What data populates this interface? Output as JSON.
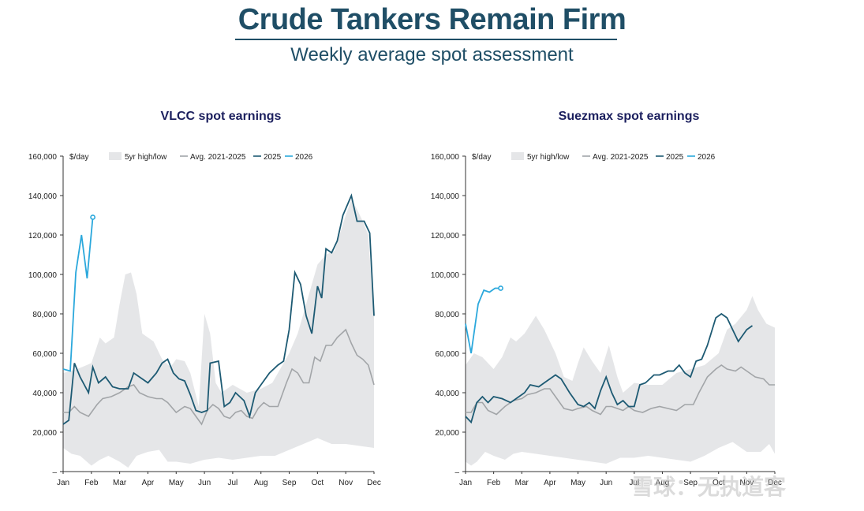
{
  "header": {
    "title": "Crude Tankers Remain Firm",
    "subtitle": "Weekly average spot assessment"
  },
  "watermark": "雪球：无执道客",
  "colors": {
    "band": "#e5e6e8",
    "avg": "#a2a5a8",
    "y2025": "#1d5a73",
    "y2026": "#2ba8dc"
  },
  "chart_data": [
    {
      "type": "line",
      "title": "VLCC spot earnings",
      "unit_label": "$/day",
      "ylim": [
        0,
        160000
      ],
      "yticks": [
        0,
        20000,
        40000,
        60000,
        80000,
        100000,
        120000,
        140000,
        160000
      ],
      "ytick_labels": [
        "–",
        "20,000",
        "40,000",
        "60,000",
        "80,000",
        "100,000",
        "120,000",
        "140,000",
        "160,000"
      ],
      "xlim": [
        0,
        11
      ],
      "month_labels": [
        "Jan",
        "Feb",
        "Mar",
        "Apr",
        "May",
        "Jun",
        "Jul",
        "Aug",
        "Sep",
        "Oct",
        "Nov",
        "Dec"
      ],
      "legend": {
        "band": "5yr high/low",
        "avg": "Avg. 2021-2025",
        "y2025": "2025",
        "y2026": "2026"
      },
      "band_high": [
        [
          0,
          50000
        ],
        [
          0.5,
          52000
        ],
        [
          1,
          55000
        ],
        [
          1.3,
          68000
        ],
        [
          1.5,
          65000
        ],
        [
          1.8,
          68000
        ],
        [
          2,
          85000
        ],
        [
          2.2,
          100000
        ],
        [
          2.4,
          101000
        ],
        [
          2.6,
          90000
        ],
        [
          2.8,
          70000
        ],
        [
          3,
          68000
        ],
        [
          3.2,
          66000
        ],
        [
          3.5,
          57000
        ],
        [
          3.8,
          53000
        ],
        [
          4,
          57000
        ],
        [
          4.3,
          56000
        ],
        [
          4.5,
          50000
        ],
        [
          4.8,
          33000
        ],
        [
          5,
          80000
        ],
        [
          5.2,
          70000
        ],
        [
          5.4,
          45000
        ],
        [
          5.6,
          40000
        ],
        [
          6,
          44000
        ],
        [
          6.5,
          40000
        ],
        [
          7,
          42000
        ],
        [
          7.4,
          45000
        ],
        [
          7.8,
          55000
        ],
        [
          8,
          60000
        ],
        [
          8.3,
          70000
        ],
        [
          8.5,
          80000
        ],
        [
          8.8,
          95000
        ],
        [
          9,
          105000
        ],
        [
          9.3,
          110000
        ],
        [
          9.6,
          112000
        ],
        [
          10,
          130000
        ],
        [
          10.2,
          138000
        ],
        [
          10.4,
          133000
        ],
        [
          10.6,
          127000
        ],
        [
          10.8,
          120000
        ],
        [
          11,
          78000
        ]
      ],
      "band_low": [
        [
          0,
          12000
        ],
        [
          0.3,
          9000
        ],
        [
          0.6,
          8000
        ],
        [
          1,
          3000
        ],
        [
          1.3,
          6000
        ],
        [
          1.6,
          8000
        ],
        [
          2,
          5000
        ],
        [
          2.3,
          2000
        ],
        [
          2.6,
          8000
        ],
        [
          3,
          10000
        ],
        [
          3.4,
          11000
        ],
        [
          3.7,
          5000
        ],
        [
          4,
          5000
        ],
        [
          4.5,
          4000
        ],
        [
          5,
          6000
        ],
        [
          5.5,
          7000
        ],
        [
          6,
          6000
        ],
        [
          6.5,
          7000
        ],
        [
          7,
          8000
        ],
        [
          7.5,
          8000
        ],
        [
          8,
          11000
        ],
        [
          8.5,
          14000
        ],
        [
          9,
          17000
        ],
        [
          9.5,
          14000
        ],
        [
          10,
          14000
        ],
        [
          10.5,
          13000
        ],
        [
          11,
          12000
        ]
      ],
      "avg": [
        [
          0,
          30000
        ],
        [
          0.2,
          30000
        ],
        [
          0.4,
          33000
        ],
        [
          0.6,
          30000
        ],
        [
          0.9,
          28000
        ],
        [
          1.2,
          34000
        ],
        [
          1.4,
          37000
        ],
        [
          1.7,
          38000
        ],
        [
          2,
          40000
        ],
        [
          2.3,
          43000
        ],
        [
          2.5,
          44000
        ],
        [
          2.7,
          40000
        ],
        [
          3,
          38000
        ],
        [
          3.3,
          37000
        ],
        [
          3.5,
          37000
        ],
        [
          3.7,
          35000
        ],
        [
          4,
          30000
        ],
        [
          4.3,
          33000
        ],
        [
          4.5,
          32000
        ],
        [
          4.7,
          28000
        ],
        [
          4.9,
          24000
        ],
        [
          5.1,
          31000
        ],
        [
          5.3,
          34000
        ],
        [
          5.5,
          32000
        ],
        [
          5.7,
          28000
        ],
        [
          5.9,
          27000
        ],
        [
          6.1,
          30000
        ],
        [
          6.3,
          31000
        ],
        [
          6.5,
          28000
        ],
        [
          6.7,
          27000
        ],
        [
          6.9,
          32000
        ],
        [
          7.1,
          35000
        ],
        [
          7.3,
          33000
        ],
        [
          7.6,
          33000
        ],
        [
          7.9,
          45000
        ],
        [
          8.1,
          52000
        ],
        [
          8.3,
          50000
        ],
        [
          8.5,
          45000
        ],
        [
          8.7,
          45000
        ],
        [
          8.9,
          58000
        ],
        [
          9.1,
          56000
        ],
        [
          9.3,
          64000
        ],
        [
          9.5,
          64000
        ],
        [
          9.7,
          68000
        ],
        [
          10,
          72000
        ],
        [
          10.2,
          65000
        ],
        [
          10.4,
          59000
        ],
        [
          10.6,
          57000
        ],
        [
          10.8,
          54000
        ],
        [
          11,
          44000
        ]
      ],
      "y2025": [
        [
          0,
          24000
        ],
        [
          0.2,
          26000
        ],
        [
          0.4,
          55000
        ],
        [
          0.6,
          48000
        ],
        [
          0.9,
          40000
        ],
        [
          1.05,
          53000
        ],
        [
          1.25,
          45000
        ],
        [
          1.5,
          48000
        ],
        [
          1.75,
          43000
        ],
        [
          2,
          42000
        ],
        [
          2.3,
          42000
        ],
        [
          2.5,
          50000
        ],
        [
          2.8,
          47000
        ],
        [
          3,
          45000
        ],
        [
          3.3,
          50000
        ],
        [
          3.5,
          55000
        ],
        [
          3.7,
          57000
        ],
        [
          3.9,
          50000
        ],
        [
          4.1,
          47000
        ],
        [
          4.3,
          46000
        ],
        [
          4.5,
          39000
        ],
        [
          4.7,
          31000
        ],
        [
          4.9,
          30000
        ],
        [
          5.1,
          31000
        ],
        [
          5.2,
          55000
        ],
        [
          5.5,
          56000
        ],
        [
          5.7,
          33000
        ],
        [
          5.9,
          35000
        ],
        [
          6.1,
          40000
        ],
        [
          6.4,
          36000
        ],
        [
          6.6,
          28000
        ],
        [
          6.8,
          40000
        ],
        [
          7,
          44000
        ],
        [
          7.3,
          50000
        ],
        [
          7.6,
          54000
        ],
        [
          7.8,
          56000
        ],
        [
          8,
          72000
        ],
        [
          8.2,
          101000
        ],
        [
          8.4,
          95000
        ],
        [
          8.6,
          79000
        ],
        [
          8.8,
          70000
        ],
        [
          9,
          94000
        ],
        [
          9.15,
          88000
        ],
        [
          9.3,
          113000
        ],
        [
          9.5,
          111000
        ],
        [
          9.7,
          117000
        ],
        [
          9.9,
          130000
        ],
        [
          10.2,
          140000
        ],
        [
          10.4,
          127000
        ],
        [
          10.65,
          127000
        ],
        [
          10.85,
          121000
        ],
        [
          11,
          79000
        ]
      ],
      "y2026": [
        [
          0,
          52000
        ],
        [
          0.25,
          51000
        ],
        [
          0.45,
          101000
        ],
        [
          0.65,
          120000
        ],
        [
          0.85,
          98000
        ],
        [
          1.05,
          129000
        ]
      ]
    },
    {
      "type": "line",
      "title": "Suezmax spot earnings",
      "unit_label": "$/day",
      "ylim": [
        0,
        160000
      ],
      "yticks": [
        0,
        20000,
        40000,
        60000,
        80000,
        100000,
        120000,
        140000,
        160000
      ],
      "ytick_labels": [
        "–",
        "20,000",
        "40,000",
        "60,000",
        "80,000",
        "100,000",
        "120,000",
        "140,000",
        "160,000"
      ],
      "xlim": [
        0,
        11
      ],
      "month_labels": [
        "Jan",
        "Feb",
        "Mar",
        "Apr",
        "May",
        "Jun",
        "Jul",
        "Aug",
        "Sep",
        "Oct",
        "Nov",
        "Dec"
      ],
      "legend": {
        "band": "5yr high/low",
        "avg": "Avg. 2021-2025",
        "y2025": "2025",
        "y2026": "2026"
      },
      "band_high": [
        [
          0,
          54000
        ],
        [
          0.3,
          60000
        ],
        [
          0.6,
          58000
        ],
        [
          1,
          52000
        ],
        [
          1.3,
          58000
        ],
        [
          1.6,
          68000
        ],
        [
          1.8,
          66000
        ],
        [
          2.1,
          70000
        ],
        [
          2.5,
          79000
        ],
        [
          2.8,
          72000
        ],
        [
          3.2,
          60000
        ],
        [
          3.5,
          48000
        ],
        [
          3.8,
          46000
        ],
        [
          4,
          55000
        ],
        [
          4.2,
          63000
        ],
        [
          4.5,
          56000
        ],
        [
          4.8,
          50000
        ],
        [
          5.1,
          64000
        ],
        [
          5.4,
          48000
        ],
        [
          5.6,
          40000
        ],
        [
          6,
          45000
        ],
        [
          6.5,
          44000
        ],
        [
          7,
          44000
        ],
        [
          7.5,
          50000
        ],
        [
          8,
          52000
        ],
        [
          8.5,
          54000
        ],
        [
          9,
          60000
        ],
        [
          9.3,
          72000
        ],
        [
          9.6,
          75000
        ],
        [
          10,
          82000
        ],
        [
          10.2,
          89000
        ],
        [
          10.4,
          82000
        ],
        [
          10.7,
          75000
        ],
        [
          11,
          73000
        ]
      ],
      "band_low": [
        [
          0,
          5000
        ],
        [
          0.2,
          3000
        ],
        [
          0.4,
          5000
        ],
        [
          0.7,
          10000
        ],
        [
          1,
          8000
        ],
        [
          1.4,
          6000
        ],
        [
          1.7,
          9000
        ],
        [
          2,
          10000
        ],
        [
          2.5,
          9000
        ],
        [
          3,
          8000
        ],
        [
          3.5,
          7000
        ],
        [
          4,
          6000
        ],
        [
          4.5,
          5000
        ],
        [
          5,
          4000
        ],
        [
          5.5,
          7000
        ],
        [
          6,
          7000
        ],
        [
          6.5,
          8000
        ],
        [
          7,
          7000
        ],
        [
          7.5,
          6000
        ],
        [
          8,
          5000
        ],
        [
          8.5,
          8000
        ],
        [
          9,
          12000
        ],
        [
          9.5,
          15000
        ],
        [
          10,
          10000
        ],
        [
          10.5,
          10000
        ],
        [
          10.8,
          14000
        ],
        [
          11,
          9000
        ]
      ],
      "avg": [
        [
          0,
          30000
        ],
        [
          0.2,
          30000
        ],
        [
          0.4,
          35000
        ],
        [
          0.6,
          35000
        ],
        [
          0.8,
          31000
        ],
        [
          1.1,
          29000
        ],
        [
          1.4,
          33000
        ],
        [
          1.7,
          36000
        ],
        [
          2,
          37000
        ],
        [
          2.2,
          39000
        ],
        [
          2.5,
          40000
        ],
        [
          2.8,
          42000
        ],
        [
          3,
          42000
        ],
        [
          3.3,
          36000
        ],
        [
          3.5,
          32000
        ],
        [
          3.8,
          31000
        ],
        [
          4,
          32000
        ],
        [
          4.3,
          33000
        ],
        [
          4.5,
          31000
        ],
        [
          4.8,
          29000
        ],
        [
          5,
          33000
        ],
        [
          5.2,
          33000
        ],
        [
          5.4,
          32000
        ],
        [
          5.6,
          31000
        ],
        [
          5.8,
          33000
        ],
        [
          6,
          31000
        ],
        [
          6.3,
          30000
        ],
        [
          6.6,
          32000
        ],
        [
          6.9,
          33000
        ],
        [
          7.2,
          32000
        ],
        [
          7.5,
          31000
        ],
        [
          7.8,
          34000
        ],
        [
          8.1,
          34000
        ],
        [
          8.3,
          40000
        ],
        [
          8.6,
          48000
        ],
        [
          8.9,
          52000
        ],
        [
          9.1,
          54000
        ],
        [
          9.3,
          52000
        ],
        [
          9.6,
          51000
        ],
        [
          9.8,
          53000
        ],
        [
          10,
          51000
        ],
        [
          10.3,
          48000
        ],
        [
          10.6,
          47000
        ],
        [
          10.8,
          44000
        ],
        [
          11,
          44000
        ]
      ],
      "y2025": [
        [
          0,
          28000
        ],
        [
          0.2,
          25000
        ],
        [
          0.4,
          35000
        ],
        [
          0.6,
          38000
        ],
        [
          0.8,
          35000
        ],
        [
          1,
          38000
        ],
        [
          1.3,
          37000
        ],
        [
          1.6,
          35000
        ],
        [
          1.9,
          38000
        ],
        [
          2.1,
          40000
        ],
        [
          2.3,
          44000
        ],
        [
          2.6,
          43000
        ],
        [
          2.9,
          46000
        ],
        [
          3.2,
          49000
        ],
        [
          3.4,
          47000
        ],
        [
          3.7,
          40000
        ],
        [
          4,
          34000
        ],
        [
          4.2,
          33000
        ],
        [
          4.4,
          35000
        ],
        [
          4.6,
          32000
        ],
        [
          4.8,
          41000
        ],
        [
          5,
          48000
        ],
        [
          5.2,
          40000
        ],
        [
          5.4,
          34000
        ],
        [
          5.6,
          36000
        ],
        [
          5.8,
          33000
        ],
        [
          6,
          33000
        ],
        [
          6.2,
          44000
        ],
        [
          6.4,
          45000
        ],
        [
          6.7,
          49000
        ],
        [
          6.9,
          49000
        ],
        [
          7.2,
          51000
        ],
        [
          7.4,
          51000
        ],
        [
          7.6,
          54000
        ],
        [
          7.8,
          50000
        ],
        [
          8,
          48000
        ],
        [
          8.2,
          56000
        ],
        [
          8.4,
          57000
        ],
        [
          8.6,
          64000
        ],
        [
          8.9,
          78000
        ],
        [
          9.1,
          80000
        ],
        [
          9.3,
          78000
        ],
        [
          9.5,
          72000
        ],
        [
          9.7,
          66000
        ],
        [
          10,
          72000
        ],
        [
          10.2,
          74000
        ]
      ],
      "y2026": [
        [
          0,
          75000
        ],
        [
          0.2,
          60000
        ],
        [
          0.45,
          85000
        ],
        [
          0.65,
          92000
        ],
        [
          0.85,
          91000
        ],
        [
          1.05,
          93000
        ],
        [
          1.25,
          93000
        ]
      ]
    }
  ]
}
